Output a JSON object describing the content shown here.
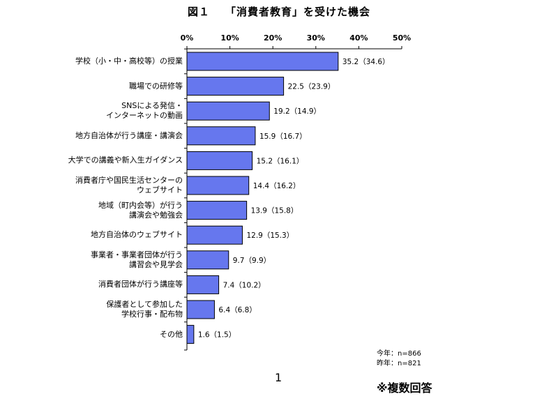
{
  "title": {
    "figure_label": "図１",
    "text": "「消費者教育」を受けた機会"
  },
  "chart_data": {
    "type": "bar",
    "orientation": "horizontal",
    "title": "「消費者教育」を受けた機会",
    "categories": [
      "学校（小・中・高校等）の授業",
      "職場での研修等",
      "SNSによる発信・\nインターネットの動画",
      "地方自治体が行う講座・講演会",
      "大学での講義や新入生ガイダンス",
      "消費者庁や国民生活センターの\nウェブサイト",
      "地域（町内会等）が行う\n講演会や勉強会",
      "地方自治体のウェブサイト",
      "事業者・事業者団体が行う\n講習会や見学会",
      "消費者団体が行う講座等",
      "保護者として参加した\n学校行事・配布物",
      "その他"
    ],
    "series": [
      {
        "name": "今年",
        "values": [
          35.2,
          22.5,
          19.2,
          15.9,
          15.2,
          14.4,
          13.9,
          12.9,
          9.7,
          7.4,
          6.4,
          1.6
        ]
      },
      {
        "name": "昨年",
        "values": [
          34.6,
          23.9,
          14.9,
          16.7,
          16.1,
          16.2,
          15.8,
          15.3,
          9.9,
          10.2,
          6.8,
          1.5
        ]
      }
    ],
    "data_labels": [
      "35.2（34.6）",
      "22.5（23.9）",
      "19.2（14.9）",
      "15.9（16.7）",
      "15.2（16.1）",
      "14.4（16.2）",
      "13.9（15.8）",
      "12.9（15.3）",
      "9.7（9.9）",
      "7.4（10.2）",
      "6.4（6.8）",
      "1.6（1.5）"
    ],
    "xlim": [
      0,
      50
    ],
    "xticks": [
      "0%",
      "10%",
      "20%",
      "30%",
      "40%",
      "50%"
    ],
    "xaxis_position": "top",
    "grid": false,
    "bar_color": "#6677ee",
    "bar_edge_color": "#000000"
  },
  "notes": {
    "this_year": "今年：n=866",
    "last_year": "昨年：n=821"
  },
  "page_number": "1",
  "multiple_answer": "※複数回答"
}
